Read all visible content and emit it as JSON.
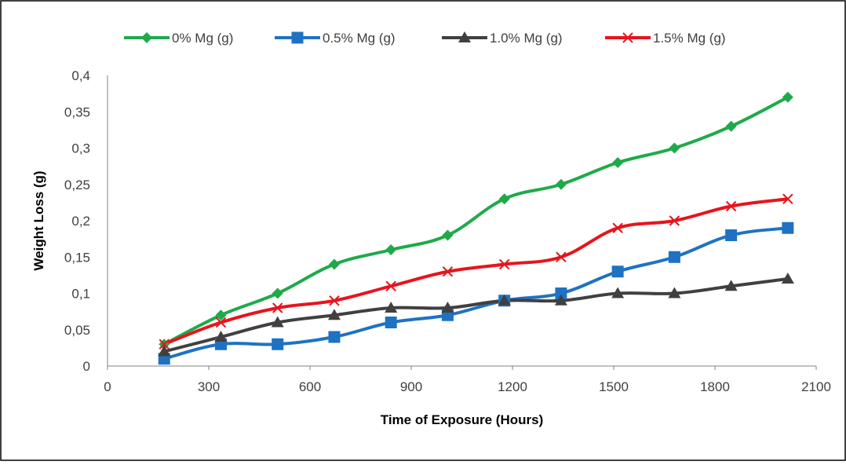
{
  "chart_data": {
    "type": "line",
    "title": "",
    "xlabel": "Time of Exposure (Hours)",
    "ylabel": "Weight Loss (g)",
    "xlim": [
      0,
      2100
    ],
    "ylim": [
      0,
      0.4
    ],
    "x_ticks": [
      0,
      300,
      600,
      900,
      1200,
      1500,
      1800,
      2100
    ],
    "x_tick_labels": [
      "0",
      "300",
      "600",
      "900",
      "1200",
      "1500",
      "1800",
      "2100"
    ],
    "y_ticks": [
      0,
      0.05,
      0.1,
      0.15,
      0.2,
      0.25,
      0.3,
      0.35,
      0.4
    ],
    "y_tick_labels": [
      "0",
      "0,05",
      "0,1",
      "0,15",
      "0,2",
      "0,25",
      "0,3",
      "0,35",
      "0,4"
    ],
    "grid": false,
    "legend_position": "top",
    "x": [
      168,
      336,
      504,
      672,
      840,
      1008,
      1176,
      1344,
      1512,
      1680,
      1848,
      2016
    ],
    "series": [
      {
        "name": "0% Mg (g)",
        "color": "#1faa4a",
        "marker": "diamond",
        "values": [
          0.03,
          0.07,
          0.1,
          0.14,
          0.16,
          0.18,
          0.23,
          0.25,
          0.28,
          0.3,
          0.33,
          0.37
        ]
      },
      {
        "name": "0.5% Mg  (g)",
        "color": "#1f72c2",
        "marker": "square",
        "values": [
          0.01,
          0.03,
          0.03,
          0.04,
          0.06,
          0.07,
          0.09,
          0.1,
          0.13,
          0.15,
          0.18,
          0.19
        ]
      },
      {
        "name": "1.0% Mg (g)",
        "color": "#404040",
        "marker": "triangle",
        "values": [
          0.02,
          0.04,
          0.06,
          0.07,
          0.08,
          0.08,
          0.09,
          0.09,
          0.1,
          0.1,
          0.11,
          0.12
        ]
      },
      {
        "name": "1.5% Mg (g)",
        "color": "#e8141c",
        "marker": "x",
        "values": [
          0.03,
          0.06,
          0.08,
          0.09,
          0.11,
          0.13,
          0.14,
          0.15,
          0.19,
          0.2,
          0.22,
          0.23
        ]
      }
    ]
  }
}
